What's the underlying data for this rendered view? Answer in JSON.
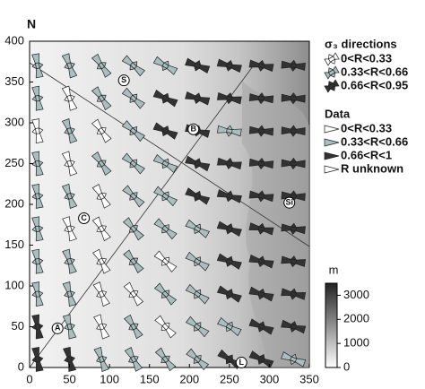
{
  "chart_data": {
    "type": "stress-map",
    "north_label": "N",
    "xlim": [
      0,
      350
    ],
    "ylim": [
      0,
      400
    ],
    "xticks": [
      0,
      50,
      100,
      150,
      200,
      250,
      300,
      350
    ],
    "yticks": [
      0,
      50,
      100,
      150,
      200,
      250,
      300,
      350,
      400
    ],
    "grid_x": [
      10,
      50,
      90,
      130,
      170,
      210,
      250,
      290,
      330
    ],
    "grid_y": [
      370,
      330,
      290,
      250,
      210,
      170,
      130,
      90,
      50,
      10
    ],
    "angles": [
      [
        100,
        110,
        125,
        140,
        150,
        160,
        165,
        170,
        175
      ],
      [
        100,
        110,
        125,
        140,
        155,
        165,
        170,
        175,
        178
      ],
      [
        100,
        110,
        125,
        140,
        155,
        165,
        172,
        176,
        178
      ],
      [
        100,
        110,
        125,
        140,
        150,
        160,
        170,
        175,
        178
      ],
      [
        100,
        110,
        120,
        135,
        145,
        155,
        165,
        172,
        176
      ],
      [
        100,
        108,
        120,
        130,
        140,
        150,
        160,
        168,
        174
      ],
      [
        100,
        108,
        118,
        128,
        138,
        148,
        158,
        165,
        172
      ],
      [
        100,
        106,
        115,
        125,
        135,
        145,
        155,
        162,
        170
      ],
      [
        100,
        105,
        112,
        122,
        132,
        142,
        150,
        158,
        165
      ],
      [
        100,
        104,
        110,
        118,
        128,
        138,
        146,
        154,
        160
      ]
    ],
    "classes": [
      [
        1,
        1,
        1,
        1,
        1,
        2,
        2,
        2,
        2
      ],
      [
        1,
        0,
        1,
        1,
        2,
        2,
        2,
        2,
        2
      ],
      [
        0,
        1,
        0,
        1,
        2,
        2,
        1,
        2,
        2
      ],
      [
        1,
        0,
        1,
        1,
        1,
        2,
        2,
        2,
        2
      ],
      [
        1,
        1,
        0,
        1,
        1,
        2,
        2,
        2,
        2
      ],
      [
        1,
        0,
        0,
        1,
        1,
        1,
        2,
        2,
        2
      ],
      [
        1,
        1,
        0,
        1,
        0,
        1,
        2,
        2,
        2
      ],
      [
        1,
        1,
        0,
        0,
        1,
        1,
        2,
        2,
        2
      ],
      [
        2,
        1,
        0,
        1,
        0,
        1,
        1,
        2,
        2
      ],
      [
        2,
        2,
        1,
        1,
        1,
        1,
        2,
        2,
        1
      ]
    ],
    "class_colors": [
      "#ffffff",
      "#a9bfbf",
      "#333333"
    ],
    "sites": [
      {
        "label": "S",
        "x": 118,
        "y": 352
      },
      {
        "label": "B",
        "x": 205,
        "y": 292
      },
      {
        "label": "C",
        "x": 68,
        "y": 183
      },
      {
        "label": "Si",
        "x": 325,
        "y": 202
      },
      {
        "label": "A",
        "x": 35,
        "y": 48
      },
      {
        "label": "L",
        "x": 265,
        "y": 6
      }
    ],
    "legend_sigma_title": "σ₃ directions",
    "legend_sigma": [
      "0<R<0.33",
      "0.33<R<0.66",
      "0.66<R<0.95"
    ],
    "legend_data_title": "Data",
    "legend_data": [
      "0<R<0.33",
      "0.33<R<0.66",
      "0.66<R<1",
      "R unknown"
    ],
    "colorbar_unit": "m",
    "clim": [
      0,
      3500
    ],
    "cticks": [
      0,
      1000,
      2000,
      3000
    ]
  }
}
